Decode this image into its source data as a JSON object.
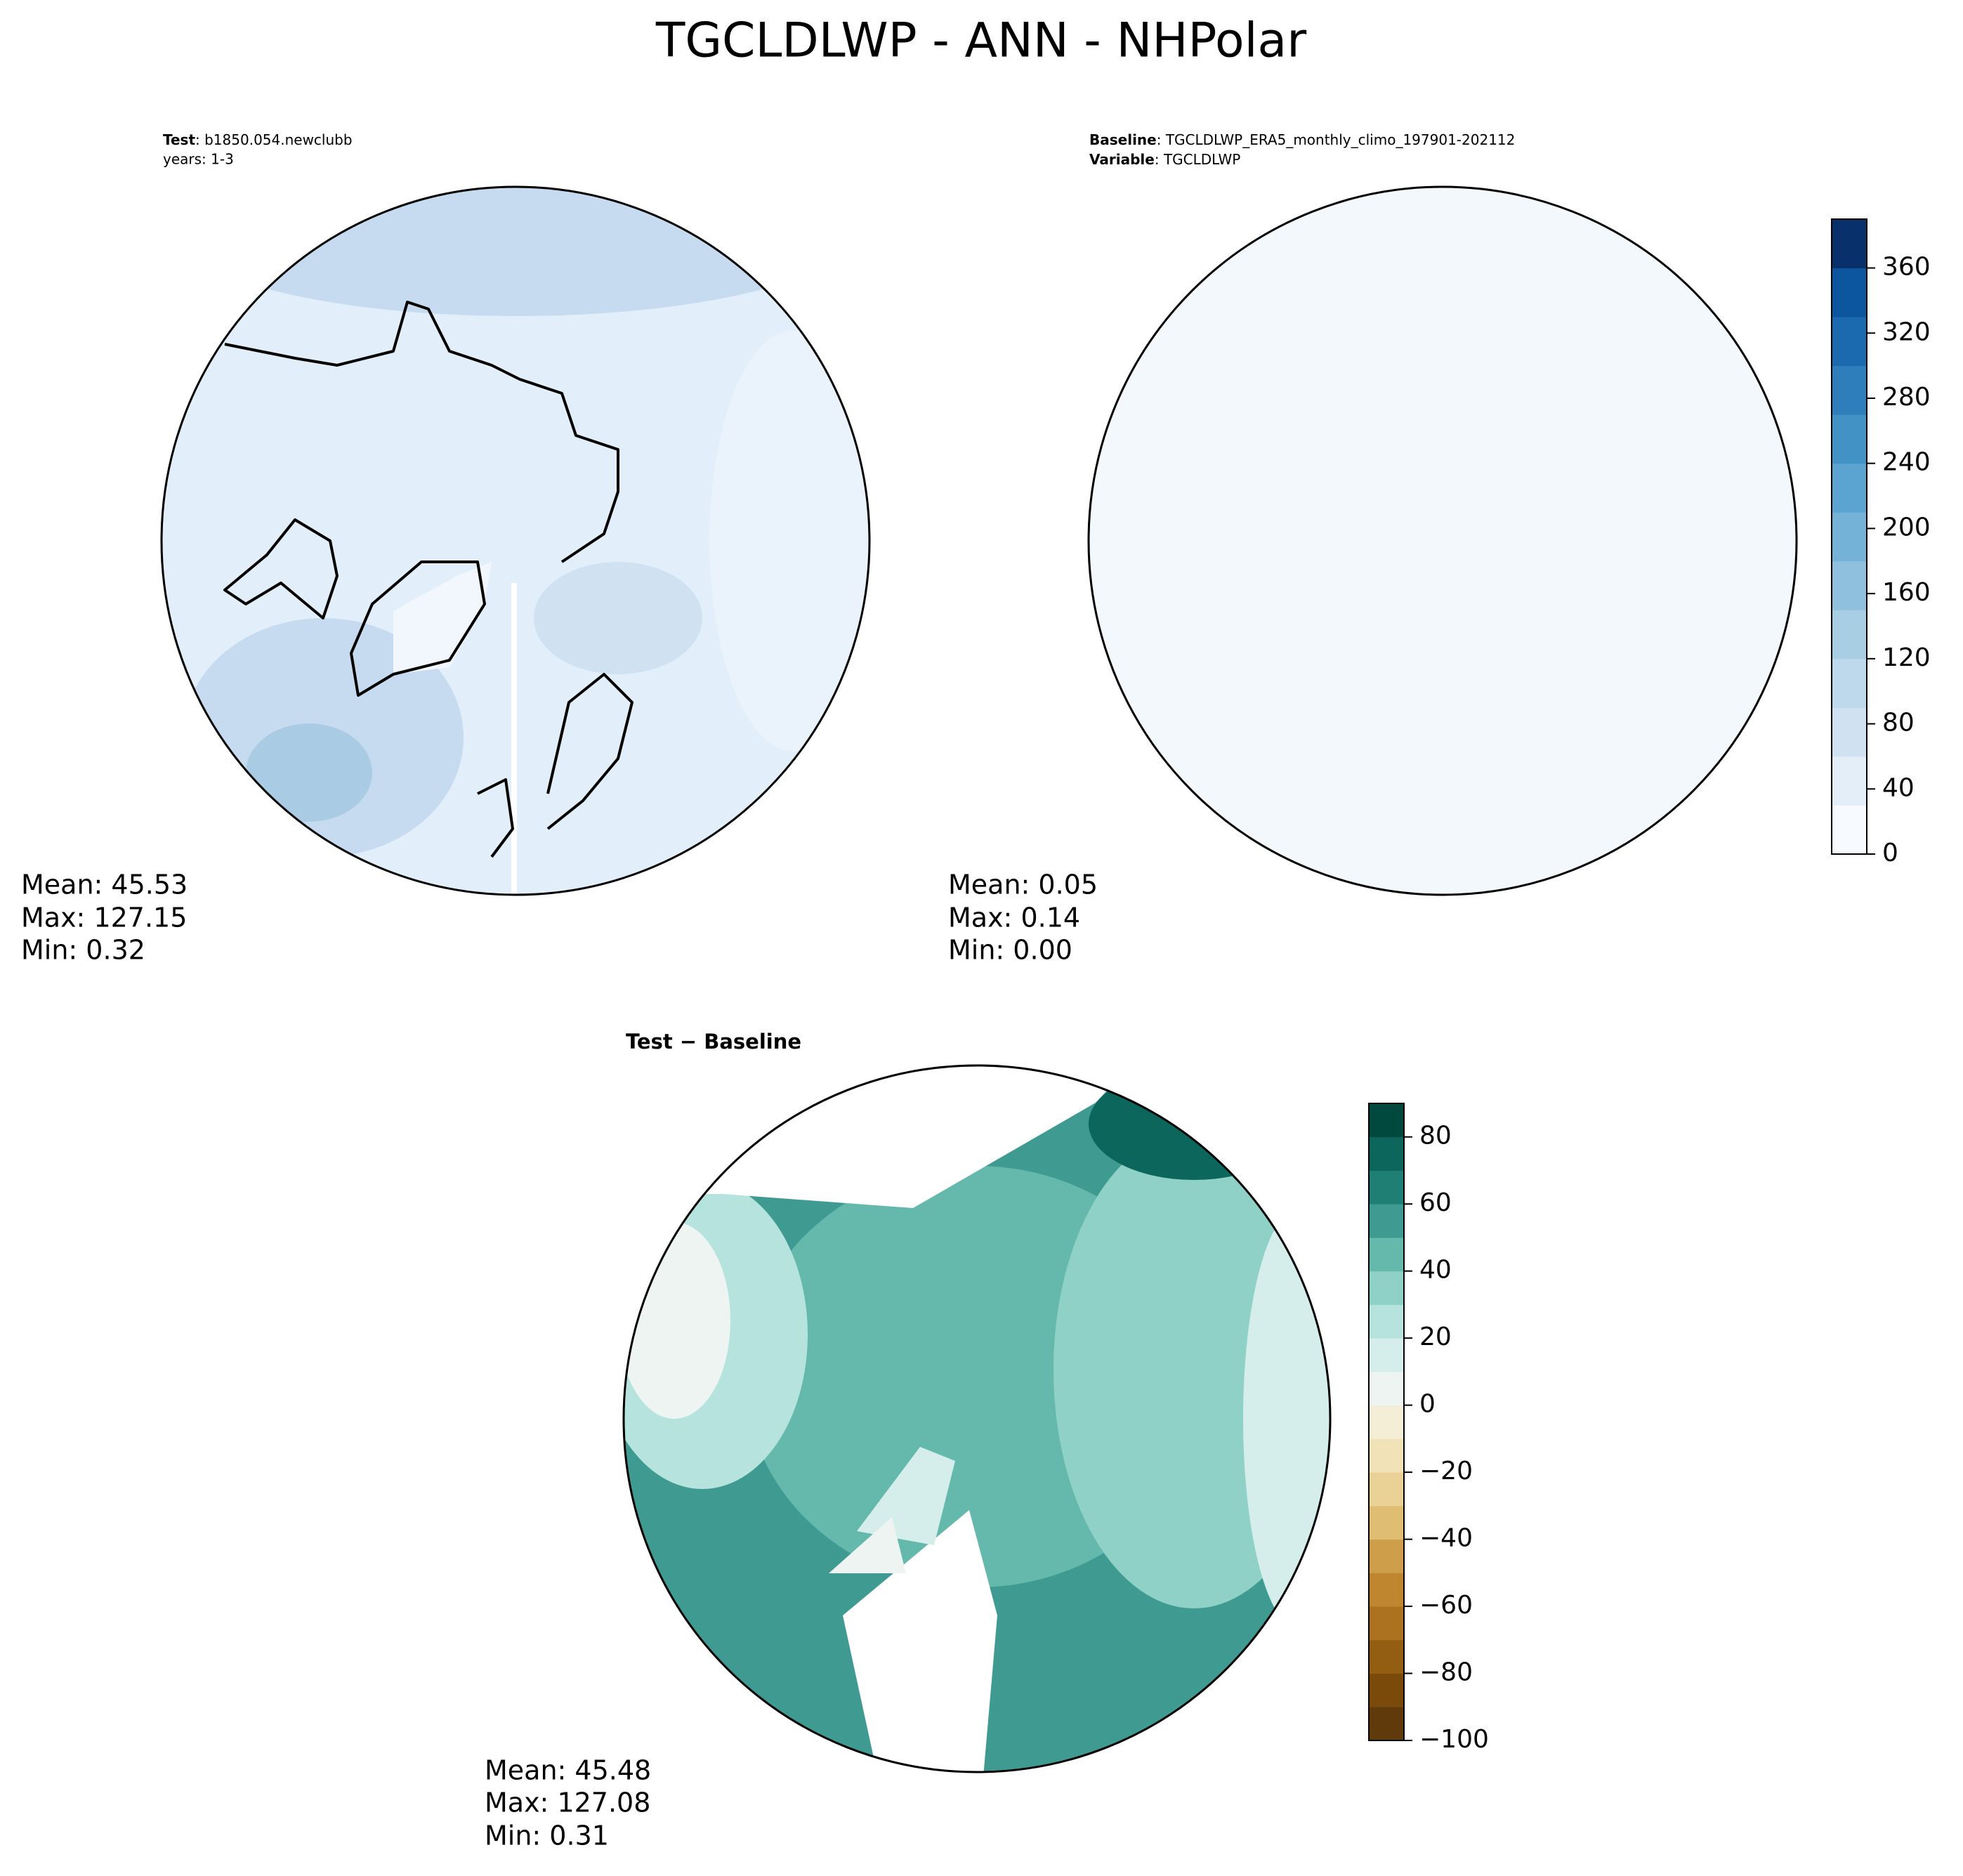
{
  "title": "TGCLDLWP - ANN - NHPolar",
  "panels": [
    {
      "header": [
        {
          "key": "Test",
          "text": ": b1850.054.newclubb"
        },
        {
          "key": null,
          "text": "years: 1-3"
        }
      ],
      "stats": [
        "Mean: 45.53",
        "Max: 127.15",
        "Min:  0.32"
      ]
    },
    {
      "header": [
        {
          "key": "Baseline",
          "text": ": TGCLDLWP_ERA5_monthly_climo_197901-202112"
        },
        {
          "key": "Variable",
          "text": ": TGCLDLWP"
        }
      ],
      "stats": [
        "Mean:  0.05",
        "Max:  0.14",
        "Min:  0.00"
      ]
    },
    {
      "header": [
        {
          "key": "Test − Baseline",
          "text": null
        }
      ],
      "stats": [
        "Mean: 45.48",
        "Max: 127.08",
        "Min:  0.31"
      ]
    }
  ],
  "colorbars": [
    {
      "lim": [
        0,
        390
      ],
      "ticks": [
        0,
        40,
        80,
        120,
        160,
        200,
        240,
        280,
        320,
        360
      ],
      "colors": [
        "#f7fbff",
        "#e3eef9",
        "#d0e1f2",
        "#bed8ec",
        "#a8cee4",
        "#8fc1de",
        "#74b2d8",
        "#5ba3d0",
        "#4292c6",
        "#2e7ebc",
        "#1b69af",
        "#0c559f",
        "#08306b"
      ]
    },
    {
      "lim": [
        -100,
        90
      ],
      "ticks": [
        {
          "value": -100,
          "label": "−100"
        },
        {
          "value": -80,
          "label": "−80"
        },
        {
          "value": -60,
          "label": "−60"
        },
        {
          "value": -40,
          "label": "−40"
        },
        {
          "value": -20,
          "label": "−20"
        },
        0,
        20,
        40,
        60,
        80
      ],
      "colors": [
        "#603a0a",
        "#7a4a0b",
        "#935d12",
        "#ac721f",
        "#bf862f",
        "#cf9e4b",
        "#dfbd72",
        "#ead297",
        "#f2e2b7",
        "#f5eed7",
        "#eef4f2",
        "#d6eeeb",
        "#b6e3dd",
        "#8fd1c6",
        "#64b8ac",
        "#3f9b91",
        "#1f7f74",
        "#0d665b",
        "#01493f"
      ]
    }
  ]
}
